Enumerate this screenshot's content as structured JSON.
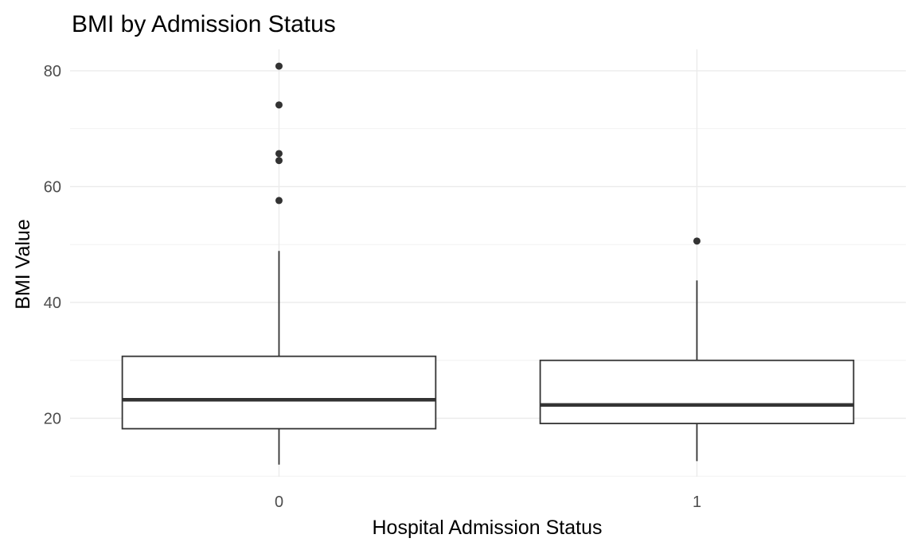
{
  "chart_data": {
    "type": "boxplot",
    "title": "BMI by Admission Status",
    "xlabel": "Hospital Admission Status",
    "ylabel": "BMI Value",
    "categories": [
      "0",
      "1"
    ],
    "y_ticks": [
      20,
      40,
      60,
      80
    ],
    "ylim": [
      9.9,
      83.7
    ],
    "grid": true,
    "boxes": [
      {
        "category": "0",
        "whisker_low": 12.0,
        "q1": 18.2,
        "median": 23.2,
        "q3": 30.7,
        "whisker_high": 48.9,
        "outliers": [
          57.6,
          64.5,
          65.7,
          74.1,
          80.8
        ]
      },
      {
        "category": "1",
        "whisker_low": 12.6,
        "q1": 19.1,
        "median": 22.3,
        "q3": 30.0,
        "whisker_high": 43.8,
        "outliers": [
          50.6
        ]
      }
    ],
    "colors": {
      "box_stroke": "#333333",
      "box_fill": "#ffffff",
      "grid": "#ebebeb",
      "tick_text": "#4d4d4d"
    }
  }
}
